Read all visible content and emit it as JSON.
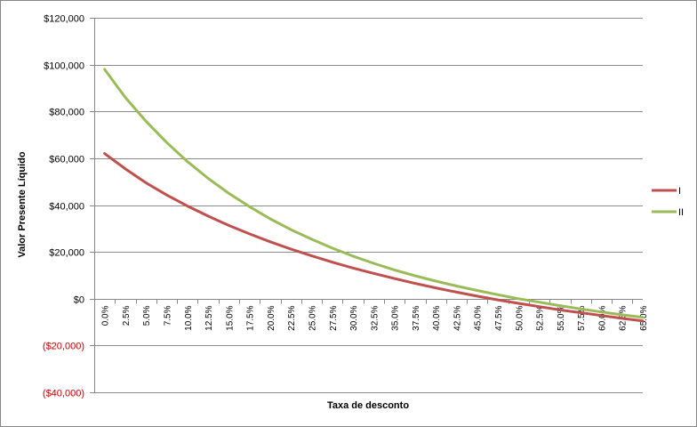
{
  "chart_data": {
    "type": "line",
    "title": "",
    "xlabel": "Taxa de desconto",
    "ylabel": "Valor Presente Líquido",
    "categories": [
      "0.0%",
      "2.5%",
      "5.0%",
      "7.5%",
      "10.0%",
      "12.5%",
      "15.0%",
      "17.5%",
      "20.0%",
      "22.5%",
      "25.0%",
      "27.5%",
      "30.0%",
      "32.5%",
      "35.0%",
      "37.5%",
      "40.0%",
      "42.5%",
      "45.0%",
      "47.5%",
      "50.0%",
      "52.5%",
      "55.0%",
      "57.5%",
      "60.0%",
      "62.5%",
      "65.0%"
    ],
    "series": [
      {
        "name": "I",
        "color": "#c0504d",
        "values": [
          62000,
          55500,
          49500,
          44300,
          39600,
          35300,
          31300,
          27700,
          24300,
          21200,
          18300,
          15600,
          13100,
          10800,
          8600,
          6500,
          4600,
          2800,
          1100,
          -500,
          -2000,
          -3400,
          -4800,
          -6000,
          -7200,
          -8400,
          -9500
        ]
      },
      {
        "name": "II",
        "color": "#9bbb59",
        "values": [
          98000,
          86000,
          75800,
          66700,
          58600,
          51400,
          45000,
          39300,
          34100,
          29500,
          25400,
          21600,
          18200,
          15100,
          12300,
          9800,
          7500,
          5400,
          3500,
          1700,
          0,
          -1500,
          -3000,
          -4400,
          -5700,
          -6900,
          -8000
        ]
      }
    ],
    "y_ticks": [
      "$120,000",
      "$100,000",
      "$80,000",
      "$60,000",
      "$40,000",
      "$20,000",
      "$0",
      "($20,000)",
      "($40,000)"
    ],
    "tick_values": [
      120000,
      100000,
      80000,
      60000,
      40000,
      20000,
      0,
      -20000,
      -40000
    ],
    "ylim": [
      -40000,
      120000
    ],
    "grid": true,
    "legend": "right",
    "negative_color": "#c00000",
    "positive_color": "#000000",
    "grid_color": "#8c8c8c",
    "frame_color": "#868686"
  }
}
